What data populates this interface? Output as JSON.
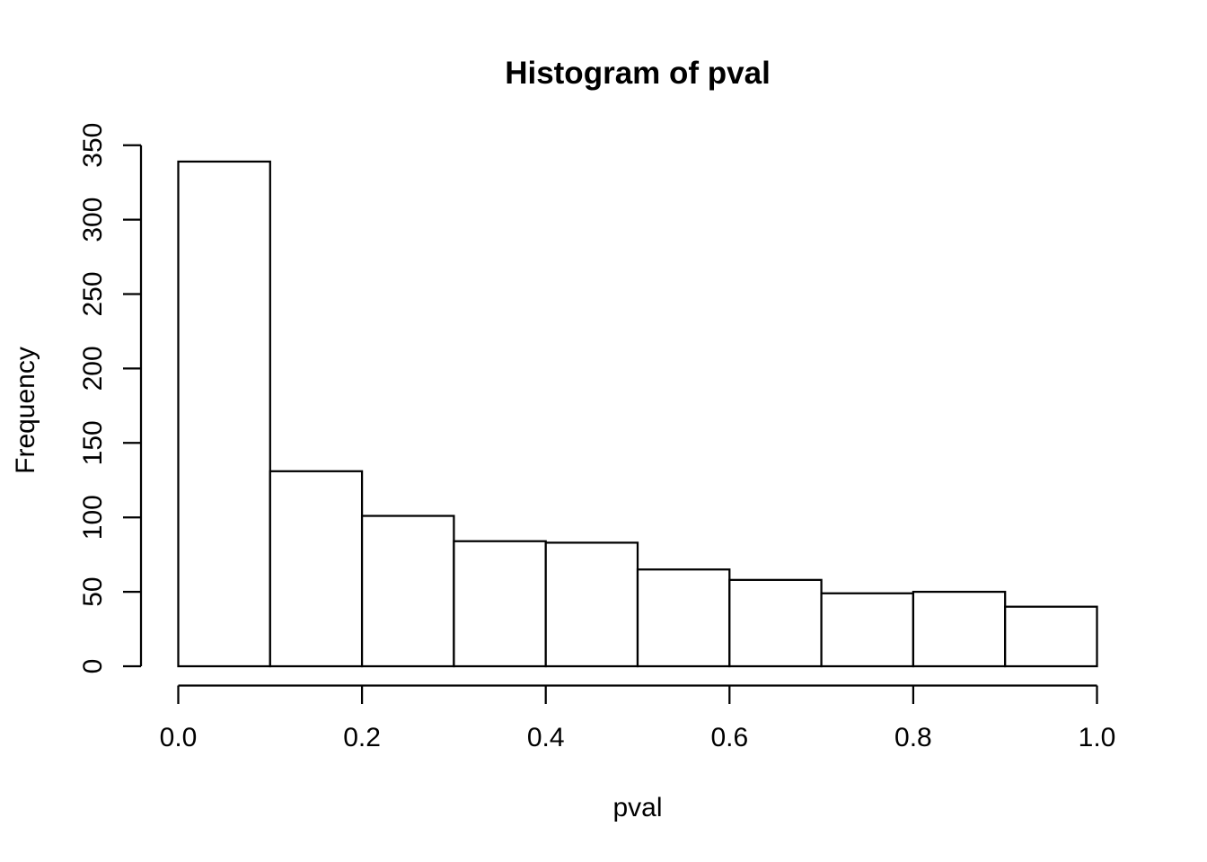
{
  "figure": {
    "background_color": "#ffffff",
    "foreground_color": "#000000"
  },
  "chart_data": {
    "type": "bar",
    "subtype": "histogram",
    "title": "Histogram of pval",
    "xlabel": "pval",
    "ylabel": "Frequency",
    "bin_edges": [
      0.0,
      0.1,
      0.2,
      0.3,
      0.4,
      0.5,
      0.6,
      0.7,
      0.8,
      0.9,
      1.0
    ],
    "counts": [
      339,
      131,
      101,
      84,
      83,
      65,
      58,
      49,
      50,
      40
    ],
    "total_observations": 1000,
    "xlim": [
      0.0,
      1.0
    ],
    "ylim": [
      0,
      350
    ],
    "x_tick_values": [
      0.0,
      0.2,
      0.4,
      0.6,
      0.8,
      1.0
    ],
    "x_tick_labels": [
      "0.0",
      "0.2",
      "0.4",
      "0.6",
      "0.8",
      "1.0"
    ],
    "y_tick_values": [
      0,
      50,
      100,
      150,
      200,
      250,
      300,
      350
    ],
    "y_tick_labels": [
      "0",
      "50",
      "100",
      "150",
      "200",
      "250",
      "300",
      "350"
    ],
    "bar_fill": "#ffffff",
    "bar_stroke": "#000000",
    "axis_color": "#000000",
    "grid": false,
    "legend": null
  }
}
